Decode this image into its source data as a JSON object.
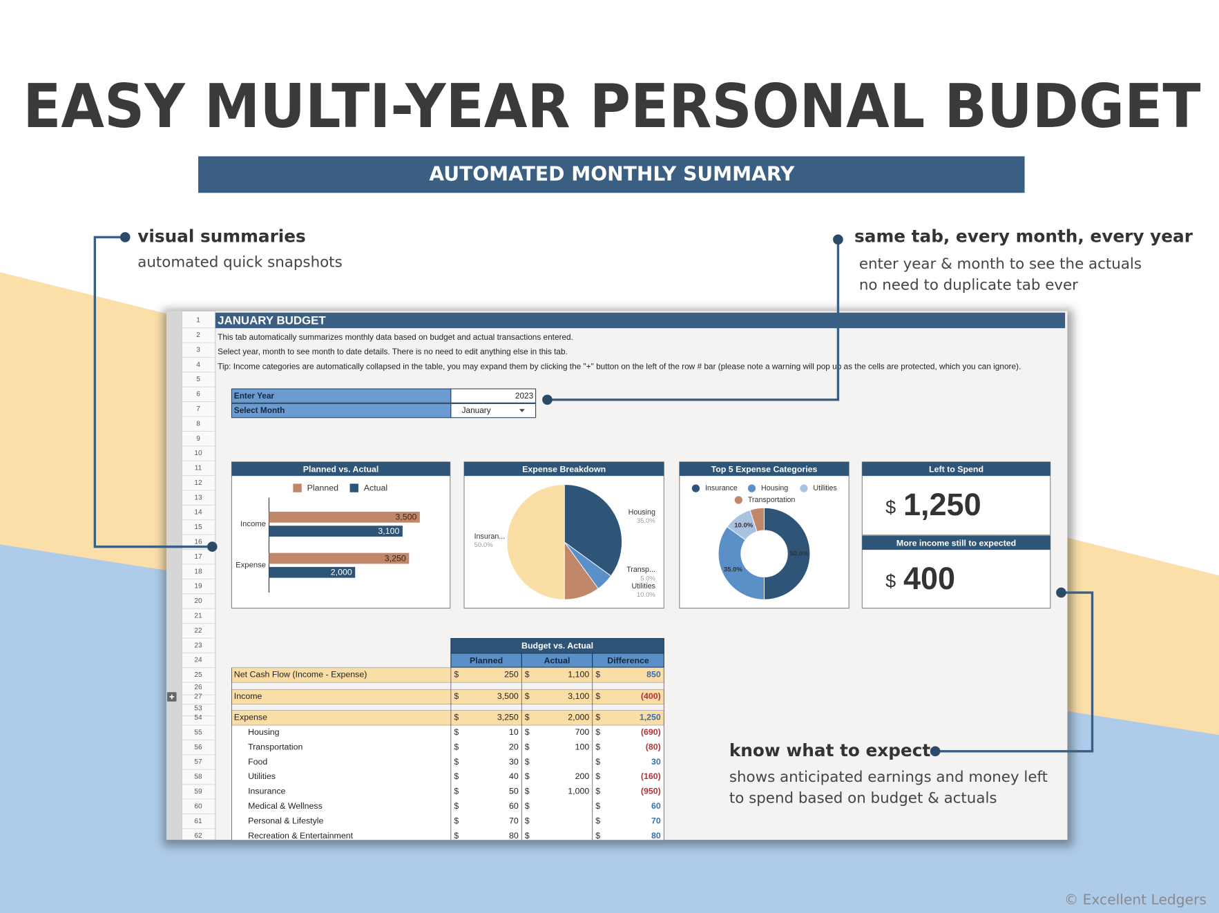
{
  "header": {
    "title": "EASY MULTI-YEAR PERSONAL BUDGET",
    "subtitle": "AUTOMATED MONTHLY SUMMARY"
  },
  "callouts": [
    {
      "title": "visual summaries",
      "lines": [
        "automated quick snapshots"
      ]
    },
    {
      "title": "same tab, every month, every year",
      "lines": [
        "enter year & month to see the actuals",
        "no need to duplicate tab ever"
      ]
    },
    {
      "title": "know what to expect",
      "lines": [
        "shows anticipated earnings and money left",
        "to spend based on budget & actuals"
      ]
    }
  ],
  "sheet": {
    "row_numbers": [
      1,
      2,
      3,
      4,
      5,
      6,
      7,
      8,
      9,
      10,
      11,
      12,
      13,
      14,
      15,
      16,
      17,
      18,
      19,
      20,
      21,
      22,
      23,
      24,
      25,
      26,
      27,
      53,
      54,
      55,
      56,
      57,
      58,
      59,
      60,
      61,
      62
    ],
    "title": "JANUARY BUDGET",
    "notes": [
      "This tab automatically summarizes monthly data based on budget and actual transactions entered.",
      "Select year, month to see month to date details. There is no need to edit anything else in this tab.",
      "Tip: Income categories are automatically collapsed in the table, you may expand them by clicking the \"+\" button on the left of the row # bar (please note a warning will pop up as the cells are protected, which you can ignore)."
    ],
    "inputs": [
      {
        "label": "Enter Year",
        "value": 2023
      },
      {
        "label": "Select Month",
        "value": "January"
      }
    ],
    "charts": [
      {
        "type": "bar",
        "title": "Planned vs. Actual",
        "categories": [
          "Income",
          "Expense"
        ],
        "series": [
          {
            "name": "Planned",
            "color": "#c0876a",
            "values": [
              3500,
              3250
            ],
            "value_labels": [
              "3,500",
              "3,250"
            ]
          },
          {
            "name": "Actual",
            "color": "#2e5577",
            "values": [
              3100,
              2000
            ],
            "value_labels": [
              "3,100",
              "2,000"
            ]
          }
        ]
      },
      {
        "type": "pie",
        "title": "Expense Breakdown",
        "categories": [
          "Housing",
          "Transp...",
          "Utilities",
          "Insuran..."
        ],
        "values": [
          35,
          5,
          10,
          50
        ],
        "value_labels": [
          "35.0%",
          "5.0%",
          "10.0%",
          "50.0%"
        ],
        "colors": [
          "#2e5577",
          "#5b8fc7",
          "#c0876a",
          "#fbdda6"
        ]
      },
      {
        "type": "donut",
        "title": "Top 5 Expense Categories",
        "categories": [
          "Insurance",
          "Housing",
          "Utilities",
          "Transportation"
        ],
        "values": [
          50,
          35,
          10,
          5
        ],
        "value_labels": [
          "50.0%",
          "35.0%",
          "10.0%",
          null
        ],
        "colors": [
          "#2e5577",
          "#5b8fc7",
          "#a9c2e2",
          "#c0876a"
        ]
      }
    ],
    "cards": [
      {
        "title": "Left to Spend",
        "currency": "$",
        "amount": "1,250"
      },
      {
        "title": "More income still to expected",
        "currency": "$",
        "amount": "400"
      }
    ],
    "table": {
      "title": "Budget vs. Actual",
      "columns": [
        "Planned",
        "Actual",
        "Difference"
      ],
      "currency": "$",
      "rows": [
        {
          "label": "Net Cash Flow (Income - Expense)",
          "cells": [
            "250",
            "1,100",
            "850"
          ],
          "style": "summary"
        },
        {
          "label": "Income",
          "cells": [
            "3,500",
            "3,100",
            "(400)"
          ],
          "style": "summary"
        },
        {
          "label": "Expense",
          "cells": [
            "3,250",
            "2,000",
            "1,250"
          ],
          "style": "summary"
        },
        {
          "label": "Housing",
          "cells": [
            "10",
            "700",
            "(690)"
          ],
          "style": "sub"
        },
        {
          "label": "Transportation",
          "cells": [
            "20",
            "100",
            "(80)"
          ],
          "style": "sub"
        },
        {
          "label": "Food",
          "cells": [
            "30",
            null,
            "30"
          ],
          "style": "sub"
        },
        {
          "label": "Utilities",
          "cells": [
            "40",
            "200",
            "(160)"
          ],
          "style": "sub"
        },
        {
          "label": "Insurance",
          "cells": [
            "50",
            "1,000",
            "(950)"
          ],
          "style": "sub"
        },
        {
          "label": "Medical & Wellness",
          "cells": [
            "60",
            null,
            "60"
          ],
          "style": "sub"
        },
        {
          "label": "Personal & Lifestyle",
          "cells": [
            "70",
            null,
            "70"
          ],
          "style": "sub"
        },
        {
          "label": "Recreation & Entertainment",
          "cells": [
            "80",
            null,
            "80"
          ],
          "style": "sub"
        }
      ]
    }
  },
  "copyright": "© Excellent Ledgers"
}
